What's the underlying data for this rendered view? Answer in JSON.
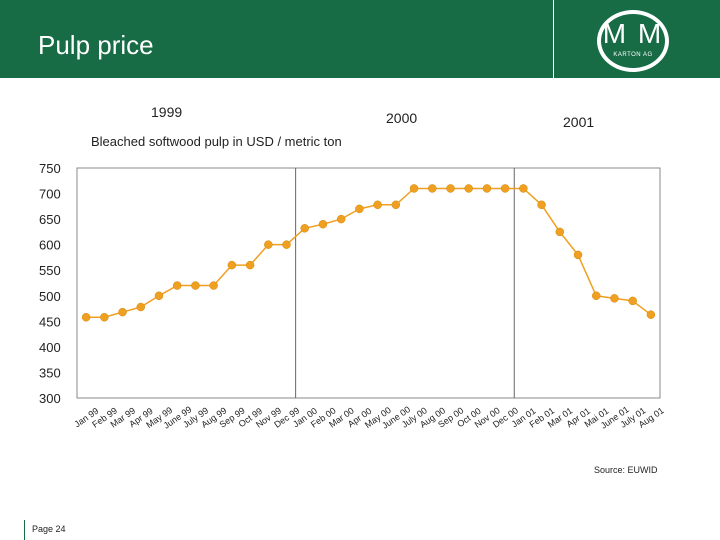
{
  "header": {
    "title": "Pulp price"
  },
  "logo": {
    "mark": "M M",
    "subtitle": "KARTON AG"
  },
  "colors": {
    "header_green": "#176b45",
    "line": "#f0a020",
    "grid": "#888888"
  },
  "chart_data": {
    "type": "line",
    "title": "Bleached softwood pulp in USD / metric ton",
    "year_labels": [
      "1999",
      "2000",
      "2001"
    ],
    "categories": [
      "Jan 99",
      "Feb 99",
      "Mar 99",
      "Apr 99",
      "May 99",
      "June 99",
      "July 99",
      "Aug 99",
      "Sep 99",
      "Oct 99",
      "Nov 99",
      "Dec 99",
      "Jan 00",
      "Feb 00",
      "Mar 00",
      "Apr 00",
      "May 00",
      "June 00",
      "July 00",
      "Aug 00",
      "Sep 00",
      "Oct 00",
      "Nov 00",
      "Dec 00",
      "Jan 01",
      "Feb 01",
      "Mar 01",
      "Apr 01",
      "Mai 01",
      "June 01",
      "July 01",
      "Aug 01"
    ],
    "series": [
      {
        "name": "Bleached softwood pulp",
        "values": [
          458,
          458,
          468,
          478,
          500,
          520,
          520,
          520,
          560,
          560,
          600,
          600,
          632,
          640,
          650,
          670,
          678,
          678,
          710,
          710,
          710,
          710,
          710,
          710,
          710,
          678,
          625,
          580,
          500,
          495,
          490,
          463
        ]
      }
    ],
    "ylim": [
      300,
      750
    ],
    "yticks": [
      750,
      700,
      650,
      600,
      550,
      500,
      450,
      400,
      350,
      300
    ],
    "year_dividers_after": [
      "Dec 99",
      "Dec 00"
    ],
    "source": "Source: EUWID"
  },
  "footer": {
    "page": "Page 24"
  }
}
